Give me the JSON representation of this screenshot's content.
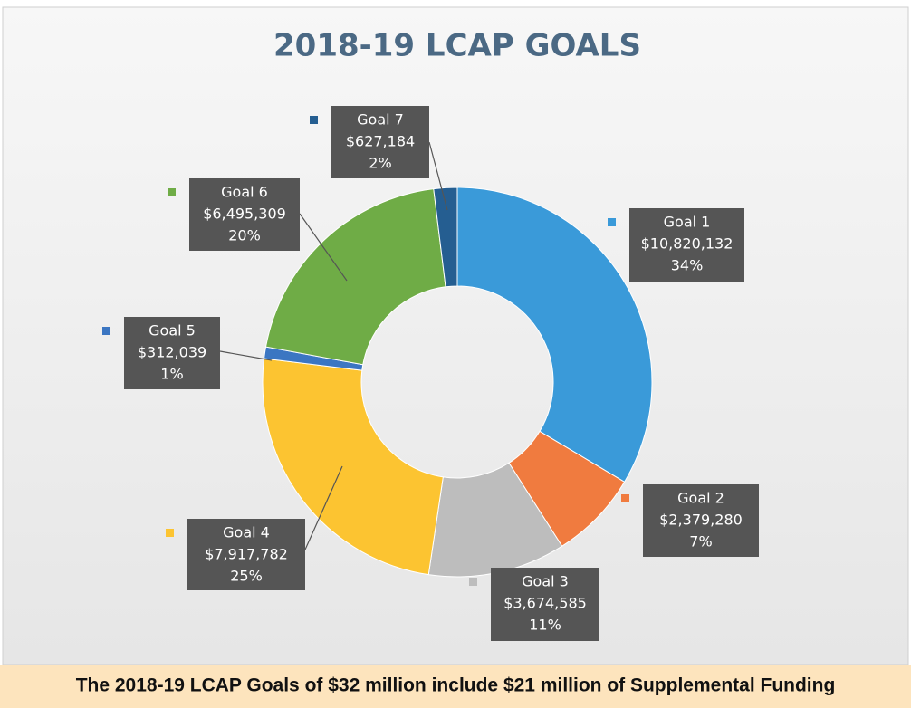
{
  "chart_data": {
    "type": "donut",
    "title": "2018-19 LCAP GOALS",
    "categories": [
      "Goal 1",
      "Goal 2",
      "Goal 3",
      "Goal 4",
      "Goal 5",
      "Goal 6",
      "Goal 7"
    ],
    "values": [
      10820132,
      2379280,
      3674585,
      7917782,
      312039,
      6495309,
      627184
    ],
    "value_labels": [
      "$10,820,132",
      "$2,379,280",
      "$3,674,585",
      "$7,917,782",
      "$312,039",
      "$6,495,309",
      "$627,184"
    ],
    "percent_labels": [
      "34%",
      "7%",
      "11%",
      "25%",
      "1%",
      "20%",
      "2%"
    ],
    "colors": [
      "#3a9ad9",
      "#f07b3f",
      "#bdbdbd",
      "#fcc431",
      "#3b76c2",
      "#6fac46",
      "#255e91"
    ],
    "footer": "The 2018-19 LCAP Goals of $32 million include $21 million of Supplemental Funding"
  }
}
